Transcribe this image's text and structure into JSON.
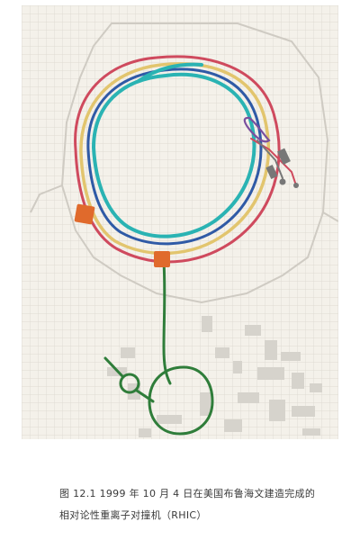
{
  "caption": {
    "line1": "图 12.1  1999 年 10 月 4 日在美国布鲁海文建造完成的",
    "line2": "相对论性重离子对撞机（RHIC）"
  },
  "colors": {
    "background_paper": "#f4f1ea",
    "grid": "#d9d5cc",
    "map_shapes": "#d6d3cc",
    "ring_red": "#cf4a5e",
    "ring_yellow": "#e2c56e",
    "ring_blue": "#2f5aa6",
    "ring_teal": "#2ab3b3",
    "transfer_line_green": "#2f7d3a",
    "injection_purple": "#7a4f9e",
    "detector_orange": "#e06a2c",
    "gray_device": "#777777"
  }
}
